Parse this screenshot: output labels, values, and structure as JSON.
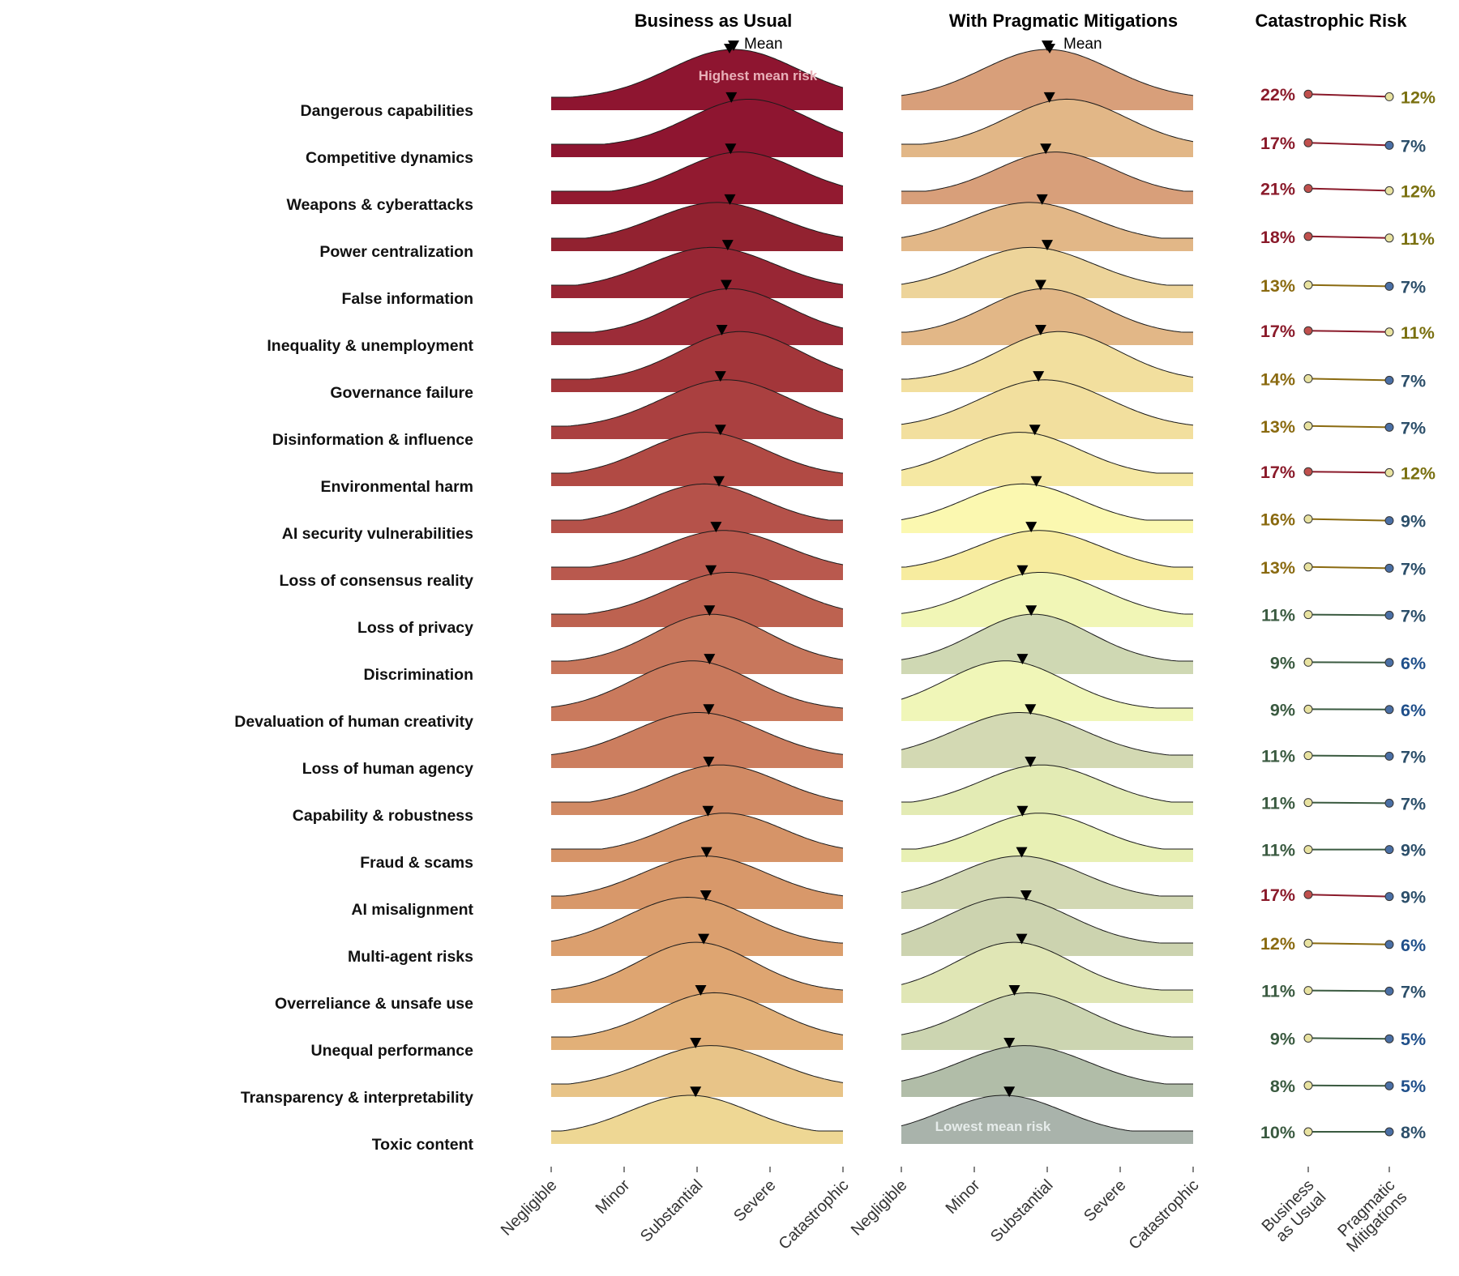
{
  "chart_data": {
    "type": "ridgeline",
    "panels": [
      {
        "title": "Business as Usual",
        "mean_label": "Mean"
      },
      {
        "title": "With Pragmatic Mitigations",
        "mean_label": "Mean"
      },
      {
        "title": "Catastrophic Risk"
      }
    ],
    "x_axis": {
      "tick_labels": [
        "Negligible",
        "Minor",
        "Substantial",
        "Severe",
        "Catastrophic"
      ]
    },
    "slope_axis": {
      "tick_labels": [
        "Business\nas Usual",
        "Pragmatic\nMitigations"
      ]
    },
    "annotations": {
      "highest": "Highest mean risk",
      "lowest": "Lowest mean risk"
    },
    "categories": [
      "Dangerous capabilities",
      "Competitive dynamics",
      "Weapons & cyberattacks",
      "Power centralization",
      "False information",
      "Inequality & unemployment",
      "Governance failure",
      "Disinformation & influence",
      "Environmental harm",
      "AI security vulnerabilities",
      "Loss of consensus reality",
      "Loss of privacy",
      "Discrimination",
      "Devaluation of human creativity",
      "Loss of human agency",
      "Capability & robustness",
      "Fraud & scams",
      "AI misalignment",
      "Multi-agent risks",
      "Overreliance & unsafe use",
      "Unequal performance",
      "Transparency & interpretability",
      "Toxic content"
    ],
    "bau_mean": [
      3.5,
      3.47,
      3.46,
      3.45,
      3.42,
      3.4,
      3.34,
      3.32,
      3.32,
      3.3,
      3.26,
      3.19,
      3.17,
      3.17,
      3.16,
      3.16,
      3.15,
      3.13,
      3.12,
      3.09,
      3.05,
      2.98,
      2.98
    ],
    "pm_mean": [
      3.0,
      3.03,
      2.98,
      2.93,
      3.0,
      2.91,
      2.91,
      2.88,
      2.83,
      2.85,
      2.78,
      2.66,
      2.78,
      2.66,
      2.77,
      2.77,
      2.66,
      2.65,
      2.71,
      2.65,
      2.55,
      2.48,
      2.48
    ],
    "bau_catastrophic_pct": [
      22,
      17,
      21,
      18,
      13,
      17,
      14,
      13,
      17,
      16,
      13,
      11,
      9,
      9,
      11,
      11,
      11,
      17,
      12,
      11,
      9,
      8,
      10
    ],
    "pm_catastrophic_pct": [
      12,
      7,
      12,
      11,
      7,
      11,
      7,
      7,
      12,
      9,
      7,
      7,
      6,
      6,
      7,
      7,
      9,
      9,
      6,
      7,
      5,
      5,
      8
    ],
    "bau_fill": [
      "#8e1530",
      "#8e1530",
      "#921a30",
      "#922230",
      "#982634",
      "#9c2c38",
      "#a3363a",
      "#aa4040",
      "#b14a44",
      "#b5524a",
      "#b9594e",
      "#bd6250",
      "#c8775c",
      "#ca7a5d",
      "#cc7e5f",
      "#d18a64",
      "#d69468",
      "#d8986a",
      "#db9f6e",
      "#dea571",
      "#e2b078",
      "#e8c488",
      "#eed794"
    ],
    "pm_fill": [
      "#d89f7a",
      "#e2b787",
      "#d89f7a",
      "#e2b787",
      "#edd49a",
      "#e2b787",
      "#f2df9e",
      "#f2df9e",
      "#f5e8a3",
      "#fbf8b0",
      "#f7ec9f",
      "#f1f6b6",
      "#cfd8b3",
      "#f0f6b8",
      "#d3d9b3",
      "#e3ebb4",
      "#e8f0b4",
      "#d2d8b3",
      "#ccd3af",
      "#e0e6b5",
      "#ccd5b1",
      "#b1bda8",
      "#a9b3ab"
    ]
  }
}
